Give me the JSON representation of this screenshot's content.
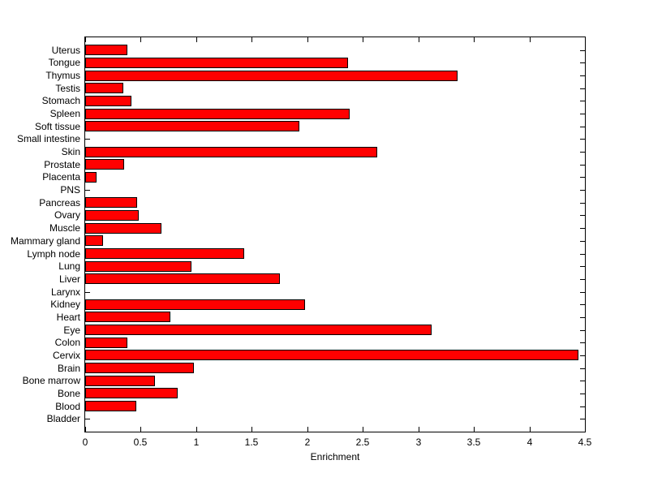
{
  "figure": {
    "background_color": "#ffffff",
    "text_color": "#000000"
  },
  "chart_data": {
    "type": "bar",
    "orientation": "horizontal",
    "title": "",
    "xlabel": "Enrichment",
    "ylabel": "",
    "xlim": [
      0,
      4.5
    ],
    "xticks": [
      0,
      0.5,
      1,
      1.5,
      2,
      2.5,
      3,
      3.5,
      4,
      4.5
    ],
    "xtick_labels": [
      "0",
      "0.5",
      "1",
      "1.5",
      "2",
      "2.5",
      "3",
      "3.5",
      "4",
      "4.5"
    ],
    "grid": false,
    "legend": null,
    "bar_color": "#ff0000",
    "bar_edge_color": "#000000",
    "axis_color": "#000000",
    "categories": [
      "Uterus",
      "Tongue",
      "Thymus",
      "Testis",
      "Stomach",
      "Spleen",
      "Soft tissue",
      "Small intestine",
      "Skin",
      "Prostate",
      "Placenta",
      "PNS",
      "Pancreas",
      "Ovary",
      "Muscle",
      "Mammary gland",
      "Lymph node",
      "Lung",
      "Liver",
      "Larynx",
      "Kidney",
      "Heart",
      "Eye",
      "Colon",
      "Cervix",
      "Brain",
      "Bone marrow",
      "Bone",
      "Blood",
      "Bladder"
    ],
    "values": [
      0.38,
      2.37,
      3.35,
      0.34,
      0.42,
      2.38,
      1.93,
      0,
      2.63,
      0.35,
      0.1,
      0,
      0.47,
      0.48,
      0.69,
      0.16,
      1.43,
      0.96,
      1.75,
      0,
      1.98,
      0.77,
      3.12,
      0.38,
      4.44,
      0.98,
      0.63,
      0.83,
      0.46,
      0
    ]
  }
}
